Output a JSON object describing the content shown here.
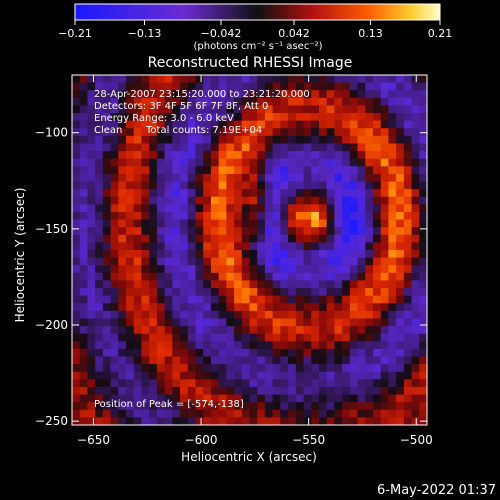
{
  "chart_data": {
    "type": "heatmap",
    "title": "Reconstructed RHESSI Image",
    "xlabel": "Heliocentric X (arcsec)",
    "ylabel": "Heliocentric Y (arcsec)",
    "xlim": [
      -660,
      -495
    ],
    "ylim": [
      -252,
      -70
    ],
    "x_ticks": [
      -650,
      -600,
      -550,
      -500
    ],
    "y_ticks": [
      -100,
      -150,
      -200,
      -250
    ],
    "x_tick_labels": [
      "−650",
      "−600",
      "−550",
      "−500"
    ],
    "y_tick_labels": [
      "−100",
      "−150",
      "−200",
      "−250"
    ],
    "colorbar": {
      "range": [
        -0.21,
        0.21
      ],
      "ticks": [
        -0.21,
        -0.13,
        -0.042,
        0.042,
        0.13,
        0.21
      ],
      "tick_labels": [
        "−0.21",
        "−0.13",
        "−0.042",
        "0.042",
        "0.13",
        "0.21"
      ],
      "unit_label": "(photons cm⁻² s⁻¹ asec⁻²)"
    },
    "annotations": {
      "time_range": "28-Apr-2007 23:15:20.000 to 23:21:20.000",
      "detectors": "Detectors: 3F 4F 5F 6F 7F 8F, Att 0",
      "energy": "Energy Range: 3.0 - 6.0 keV",
      "method": "Clean",
      "counts": "Total counts: 7.19E+04",
      "peak": "Position of Peak = [-574,-138]"
    },
    "peak": {
      "x": -574,
      "y": -138
    }
  },
  "footer": {
    "timestamp": "6-May-2022 01:37"
  },
  "colors": {
    "background": "#000000",
    "foreground": "#ffffff"
  }
}
